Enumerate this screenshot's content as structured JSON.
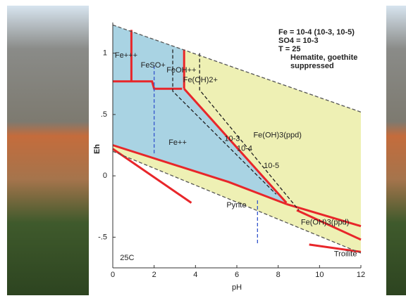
{
  "chart_data": {
    "type": "phase-diagram",
    "x_label": "pH",
    "y_label": "Eh",
    "xlim": [
      0,
      12
    ],
    "ylim": [
      -0.75,
      1.25
    ],
    "xticks": [
      0,
      2,
      4,
      6,
      8,
      10,
      12
    ],
    "yticks": [
      {
        "value": -0.5,
        "label": "-.5"
      },
      0,
      {
        "value": 0.5,
        "label": ".5"
      },
      1
    ],
    "legend_text": [
      "Fe = 10-4 (10-3, 10-5)",
      "SO4 = 10-3",
      "T = 25",
      "Hematite, goethite",
      "suppressed"
    ],
    "fields": [
      {
        "color": "#eef0b4",
        "x": [
          0,
          12,
          12,
          0
        ],
        "y": [
          1.23,
          0.52,
          -0.63,
          0.2
        ]
      },
      {
        "color": "#a9d3e3",
        "x": [
          0,
          3.4,
          3.4,
          8.4,
          5.6,
          0
        ],
        "y": [
          1.23,
          1.03,
          0.71,
          -0.22,
          -0.05,
          0.25
        ]
      }
    ],
    "boundaries": [
      {
        "color": "#e8262a",
        "style": "solid",
        "x": [
          0.9,
          0.9
        ],
        "y": [
          1.19,
          0.77
        ]
      },
      {
        "color": "#e8262a",
        "style": "solid",
        "x": [
          0,
          1.9,
          2.0,
          3.35
        ],
        "y": [
          0.77,
          0.77,
          0.71,
          0.71
        ]
      },
      {
        "color": "#e8262a",
        "style": "solid",
        "x": [
          3.45,
          3.45
        ],
        "y": [
          1.03,
          0.71
        ]
      },
      {
        "color": "#e8262a",
        "style": "solid",
        "x": [
          3.45,
          8.4
        ],
        "y": [
          0.71,
          -0.22
        ]
      },
      {
        "color": "#e8262a",
        "style": "solid",
        "x": [
          0,
          5.6,
          8.4
        ],
        "y": [
          0.25,
          -0.05,
          -0.23
        ]
      },
      {
        "color": "#e8262a",
        "style": "solid",
        "x": [
          0,
          3.8
        ],
        "y": [
          0.22,
          -0.22
        ]
      },
      {
        "color": "#e8262a",
        "style": "solid",
        "x": [
          8.4,
          12
        ],
        "y": [
          -0.23,
          -0.41
        ]
      },
      {
        "color": "#e8262a",
        "style": "solid",
        "x": [
          8.9,
          12
        ],
        "y": [
          -0.28,
          -0.52
        ]
      },
      {
        "color": "#e8262a",
        "style": "solid",
        "x": [
          9.5,
          12
        ],
        "y": [
          -0.56,
          -0.62
        ]
      },
      {
        "color": "#222222",
        "style": "dashed",
        "x": [
          2.9,
          2.9,
          7.9
        ],
        "y": [
          1.03,
          0.69,
          -0.15
        ]
      },
      {
        "color": "#222222",
        "style": "dashed",
        "x": [
          4.2,
          4.2,
          9.0
        ],
        "y": [
          1.0,
          0.7,
          -0.28
        ]
      },
      {
        "color": "#3355cc",
        "style": "dashed",
        "x": [
          2,
          2
        ],
        "y": [
          0.9,
          0.18
        ]
      },
      {
        "color": "#3355cc",
        "style": "dashed",
        "x": [
          7,
          7
        ],
        "y": [
          -0.2,
          -0.55
        ]
      },
      {
        "color": "#555555",
        "style": "dashed",
        "x": [
          0,
          12
        ],
        "y": [
          1.23,
          0.52
        ]
      },
      {
        "color": "#555555",
        "style": "dashed",
        "x": [
          0,
          12
        ],
        "y": [
          0.2,
          -0.63
        ]
      }
    ],
    "annotations": [
      {
        "text": "Fe+++",
        "x": 0.1,
        "y": 0.98
      },
      {
        "text": "FeSO+",
        "x": 1.35,
        "y": 0.9
      },
      {
        "text": "FeOH++",
        "x": 2.6,
        "y": 0.86
      },
      {
        "text": "Fe(OH)2+",
        "x": 3.4,
        "y": 0.78
      },
      {
        "text": "Fe++",
        "x": 2.7,
        "y": 0.27
      },
      {
        "text": "Fe(OH)3(ppd)",
        "x": 6.8,
        "y": 0.33
      },
      {
        "text": "10-3",
        "x": 5.4,
        "y": 0.3
      },
      {
        "text": "10-4",
        "x": 6.0,
        "y": 0.22
      },
      {
        "text": "10-5",
        "x": 7.3,
        "y": 0.08
      },
      {
        "text": "Pyrite",
        "x": 5.5,
        "y": -0.24
      },
      {
        "text": "Fe(OH)3(ppd)",
        "x": 9.1,
        "y": -0.38
      },
      {
        "text": "Troilite",
        "x": 10.7,
        "y": -0.64
      },
      {
        "text": "25C",
        "x": 0.35,
        "y": -0.67
      }
    ]
  }
}
